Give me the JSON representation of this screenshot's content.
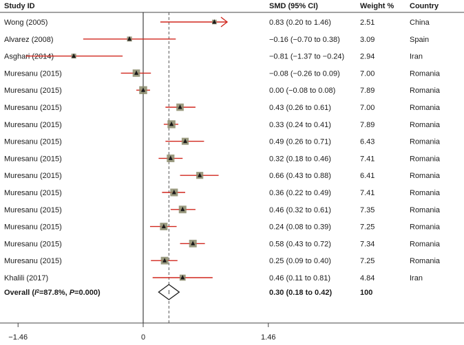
{
  "chart_data": {
    "type": "forest",
    "headers": {
      "study": "Study ID",
      "smd": "SMD (95% CI)",
      "weight": "Weight %",
      "country": "Country"
    },
    "studies": [
      {
        "study": "Wong (2005)",
        "smd": 0.83,
        "lo": 0.2,
        "hi": 1.46,
        "ci_label": "0.83 (0.20 to 1.46)",
        "weight": "2.51",
        "country": "China",
        "arrow_right": true
      },
      {
        "study": "Alvarez (2008)",
        "smd": -0.16,
        "lo": -0.7,
        "hi": 0.38,
        "ci_label": "−0.16 (−0.70 to 0.38)",
        "weight": "3.09",
        "country": "Spain"
      },
      {
        "study": "Asghari  (2014)",
        "smd": -0.81,
        "lo": -1.37,
        "hi": -0.24,
        "ci_label": "−0.81 (−1.37 to −0.24)",
        "weight": "2.94",
        "country": "Iran"
      },
      {
        "study": "Muresanu (2015)",
        "smd": -0.08,
        "lo": -0.26,
        "hi": 0.09,
        "ci_label": "−0.08 (−0.26 to 0.09)",
        "weight": "7.00",
        "country": "Romania"
      },
      {
        "study": "Muresanu (2015)",
        "smd": 0.0,
        "lo": -0.08,
        "hi": 0.08,
        "ci_label": "0.00 (−0.08 to 0.08)",
        "weight": "7.89",
        "country": "Romania"
      },
      {
        "study": "Muresanu (2015)",
        "smd": 0.43,
        "lo": 0.26,
        "hi": 0.61,
        "ci_label": "0.43 (0.26 to 0.61)",
        "weight": "7.00",
        "country": "Romania"
      },
      {
        "study": "Muresanu (2015)",
        "smd": 0.33,
        "lo": 0.24,
        "hi": 0.41,
        "ci_label": "0.33 (0.24 to 0.41)",
        "weight": "7.89",
        "country": "Romania"
      },
      {
        "study": "Muresanu (2015)",
        "smd": 0.49,
        "lo": 0.26,
        "hi": 0.71,
        "ci_label": "0.49 (0.26 to 0.71)",
        "weight": "6.43",
        "country": "Romania"
      },
      {
        "study": "Muresanu (2015)",
        "smd": 0.32,
        "lo": 0.18,
        "hi": 0.46,
        "ci_label": "0.32 (0.18 to 0.46)",
        "weight": "7.41",
        "country": "Romania"
      },
      {
        "study": "Muresanu (2015)",
        "smd": 0.66,
        "lo": 0.43,
        "hi": 0.88,
        "ci_label": "0.66 (0.43 to 0.88)",
        "weight": "6.41",
        "country": "Romania"
      },
      {
        "study": "Muresanu (2015)",
        "smd": 0.36,
        "lo": 0.22,
        "hi": 0.49,
        "ci_label": "0.36 (0.22 to 0.49)",
        "weight": "7.41",
        "country": "Romania"
      },
      {
        "study": "Muresanu (2015)",
        "smd": 0.46,
        "lo": 0.32,
        "hi": 0.61,
        "ci_label": "0.46 (0.32 to 0.61)",
        "weight": "7.35",
        "country": "Romania"
      },
      {
        "study": "Muresanu (2015)",
        "smd": 0.24,
        "lo": 0.08,
        "hi": 0.39,
        "ci_label": "0.24 (0.08 to 0.39)",
        "weight": "7.25",
        "country": "Romania"
      },
      {
        "study": "Muresanu (2015)",
        "smd": 0.58,
        "lo": 0.43,
        "hi": 0.72,
        "ci_label": "0.58 (0.43 to 0.72)",
        "weight": "7.34",
        "country": "Romania"
      },
      {
        "study": "Muresanu (2015)",
        "smd": 0.25,
        "lo": 0.09,
        "hi": 0.4,
        "ci_label": "0.25 (0.09 to 0.40)",
        "weight": "7.25",
        "country": "Romania"
      },
      {
        "study": "Khalili (2017)",
        "smd": 0.46,
        "lo": 0.11,
        "hi": 0.81,
        "ci_label": "0.46 (0.11 to 0.81)",
        "weight": "4.84",
        "country": "Iran"
      }
    ],
    "overall": {
      "label_prefix": "Overall (",
      "i2_symbol": "I",
      "i2_sup": "2",
      "label_mid": "=87.8%, ",
      "p_symbol": "P",
      "label_suffix": "=0.000)",
      "smd": 0.3,
      "lo": 0.18,
      "hi": 0.42,
      "ci_label": "0.30 (0.18 to 0.42)",
      "weight": "100"
    },
    "xaxis": {
      "range": [
        -1.46,
        1.46
      ],
      "ticks": [
        -1.46,
        0,
        1.46
      ],
      "tick_labels": [
        "−1.46",
        "0",
        "1.46"
      ]
    },
    "reference_line": 0,
    "dashed_line": 0.3,
    "colors": {
      "ci_line": "#d0251b",
      "marker_box": "#8a8a6a",
      "marker_point": "#1a1a1a",
      "text": "#1a1a1a",
      "separator": "#444444"
    }
  }
}
